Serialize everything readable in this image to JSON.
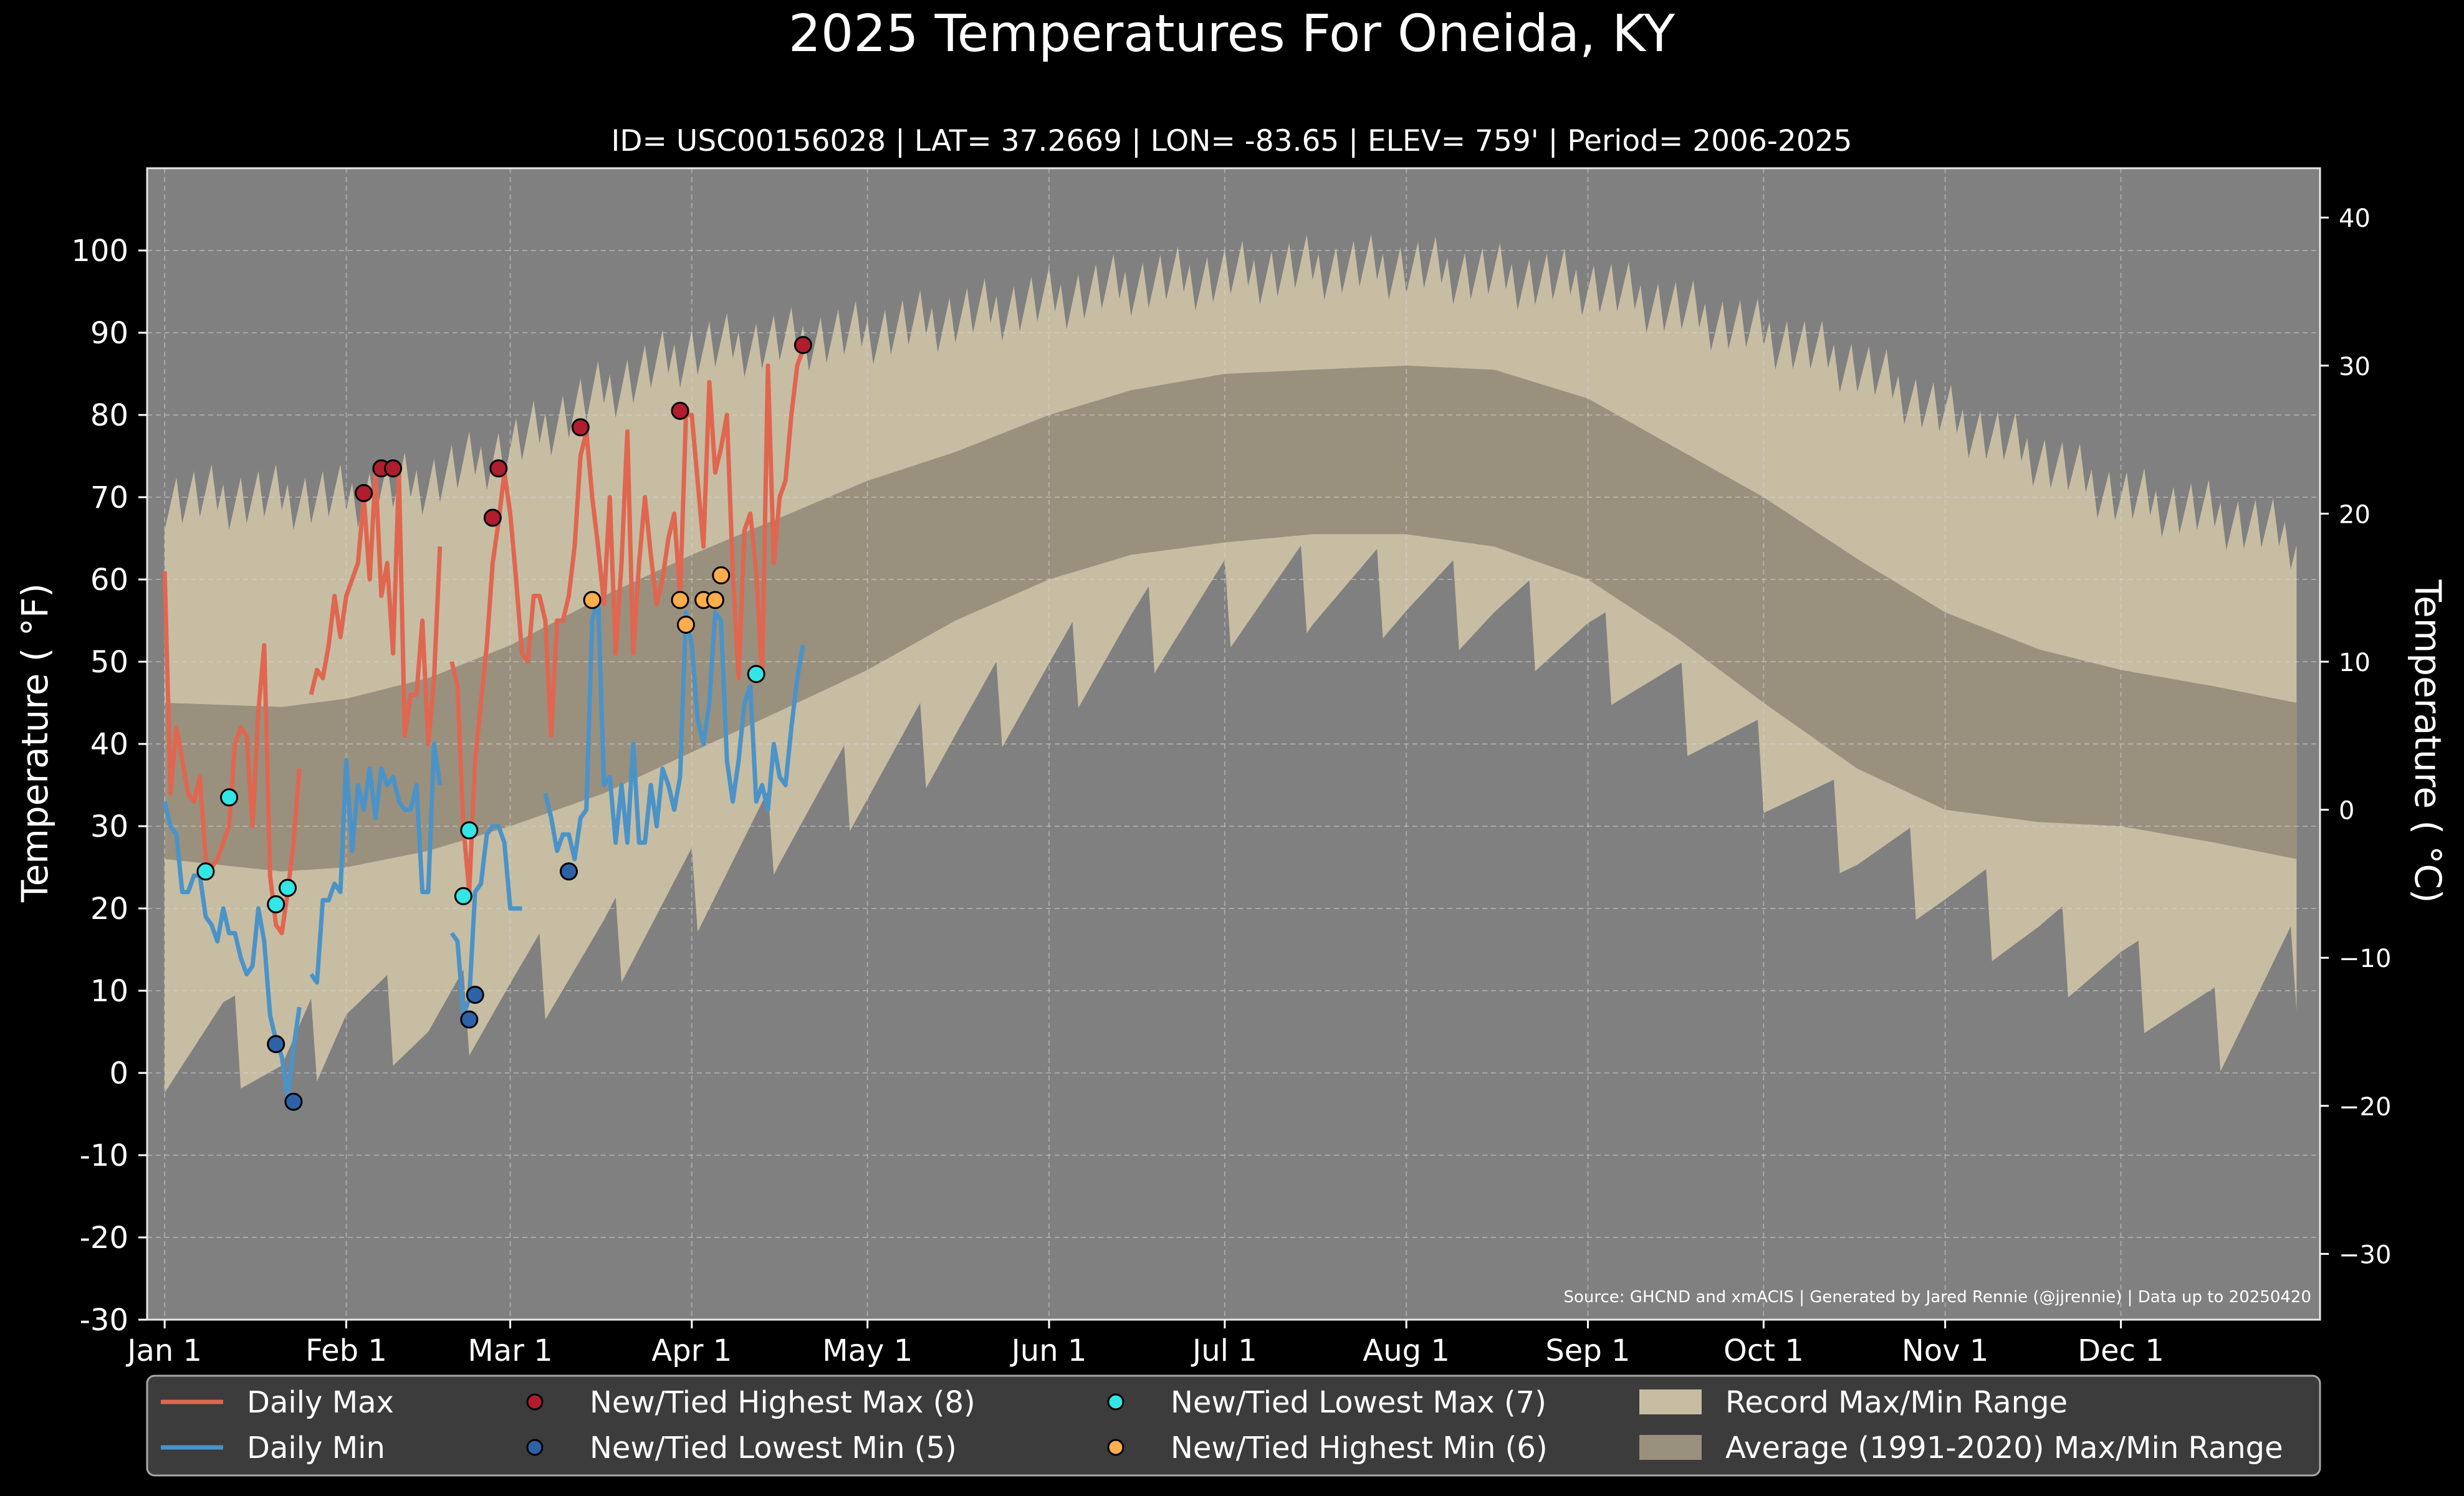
{
  "chart_data": {
    "type": "area",
    "title": "2025 Temperatures For Oneida, KY",
    "subtitle": "ID= USC00156028 | LAT= 37.2669 | LON= -83.65 | ELEV= 759' | Period= 2006-2025",
    "ylabel": "Temperature ( $^\\circ$F)",
    "ylabel_display": "Temperature ( °F)",
    "ylabel_right": "Temperature ( °C)",
    "source": "Source: GHCND and xmACIS | Generated by Jared Rennie (@jjrennie) | Data up to 20250420",
    "ylim": [
      -30,
      110
    ],
    "xlim": [
      -3,
      368
    ],
    "yticks": [
      "-30",
      "-20",
      "-10",
      "0",
      "10",
      "20",
      "30",
      "40",
      "50",
      "60",
      "70",
      "80",
      "90",
      "100"
    ],
    "yticks_right": [
      "−30",
      "−20",
      "−10",
      "0",
      "10",
      "20",
      "30",
      "40"
    ],
    "xticks": [
      {
        "label": "Jan 1",
        "day": 0
      },
      {
        "label": "Feb 1",
        "day": 31
      },
      {
        "label": "Mar 1",
        "day": 59
      },
      {
        "label": "Apr 1",
        "day": 90
      },
      {
        "label": "May 1",
        "day": 120
      },
      {
        "label": "Jun 1",
        "day": 151
      },
      {
        "label": "Jul 1",
        "day": 181
      },
      {
        "label": "Aug 1",
        "day": 212
      },
      {
        "label": "Sep 1",
        "day": 243
      },
      {
        "label": "Oct 1",
        "day": 273
      },
      {
        "label": "Nov 1",
        "day": 304
      },
      {
        "label": "Dec 1",
        "day": 334
      }
    ],
    "grid": true,
    "legend_placement": "bottom",
    "legend": [
      {
        "label": "Daily Max",
        "kind": "line",
        "color": "#e06650"
      },
      {
        "label": "Daily Min",
        "kind": "line",
        "color": "#4a93c8"
      },
      {
        "label": "New/Tied Highest Max (8)",
        "kind": "dot",
        "color": "#b01e2e"
      },
      {
        "label": "New/Tied Lowest Min (5)",
        "kind": "dot",
        "color": "#2e62a8"
      },
      {
        "label": "New/Tied Lowest Max (7)",
        "kind": "dot",
        "color": "#33e6e6"
      },
      {
        "label": "New/Tied Highest Min (6)",
        "kind": "dot",
        "color": "#ffad4d"
      },
      {
        "label": "Record Max/Min Range",
        "kind": "patch",
        "color": "#c7bda3"
      },
      {
        "label": "Average (1991-2020) Max/Min Range",
        "kind": "patch",
        "color": "#9a907e"
      }
    ],
    "colors": {
      "background": "#000000",
      "plot_bg": "#808080",
      "record_band": "#c7bda3",
      "normal_band": "#9a907e",
      "daily_max": "#e06650",
      "daily_min": "#4a93c8"
    },
    "record_max": {
      "day": [
        0,
        10,
        20,
        31,
        45,
        59,
        75,
        90,
        105,
        120,
        135,
        151,
        165,
        181,
        196,
        212,
        227,
        243,
        258,
        273,
        289,
        304,
        320,
        334,
        350,
        364
      ],
      "value": [
        70,
        70,
        70,
        70,
        72,
        76,
        83,
        88,
        89,
        90,
        92,
        94,
        96,
        97,
        98,
        98,
        97,
        96,
        93,
        90,
        86,
        80,
        75,
        70,
        68,
        65
      ]
    },
    "record_min": {
      "day": [
        0,
        10,
        20,
        31,
        45,
        59,
        75,
        90,
        105,
        120,
        135,
        151,
        165,
        181,
        196,
        212,
        227,
        243,
        258,
        273,
        289,
        304,
        320,
        334,
        350,
        364
      ],
      "value": [
        3,
        5,
        0,
        8,
        5,
        10,
        15,
        22,
        30,
        36,
        42,
        48,
        53,
        57,
        59,
        58,
        56,
        52,
        45,
        37,
        28,
        22,
        16,
        12,
        5,
        13
      ]
    },
    "normal_max": {
      "day": [
        0,
        20,
        31,
        45,
        59,
        75,
        90,
        105,
        120,
        135,
        151,
        165,
        181,
        196,
        212,
        227,
        243,
        258,
        273,
        289,
        304,
        320,
        334,
        350,
        364
      ],
      "value": [
        45,
        44.5,
        45.5,
        48,
        52,
        58,
        63,
        67.5,
        72,
        75.5,
        80,
        83,
        85,
        85.5,
        86,
        85.5,
        82,
        76,
        70,
        62.5,
        56,
        51.5,
        49,
        47,
        45
      ]
    },
    "normal_min": {
      "day": [
        0,
        20,
        31,
        45,
        59,
        75,
        90,
        105,
        120,
        135,
        151,
        165,
        181,
        196,
        212,
        227,
        243,
        258,
        273,
        289,
        304,
        320,
        334,
        350,
        364
      ],
      "value": [
        26,
        24.5,
        25,
        27,
        30,
        34,
        39,
        44,
        49,
        55,
        60,
        63,
        64.5,
        65.5,
        65.5,
        64,
        60,
        53,
        45,
        37,
        32,
        30.5,
        30,
        28,
        26
      ]
    },
    "daily_max": [
      [
        0,
        61
      ],
      [
        1,
        34
      ],
      [
        2,
        42
      ],
      [
        3,
        38
      ],
      [
        4,
        34
      ],
      [
        5,
        33
      ],
      [
        6,
        36
      ],
      [
        7,
        26
      ],
      [
        8,
        25
      ],
      [
        9,
        26
      ],
      [
        10,
        28
      ],
      [
        11,
        30
      ],
      [
        12,
        40
      ],
      [
        13,
        42
      ],
      [
        14,
        41
      ],
      [
        15,
        30
      ],
      [
        16,
        44
      ],
      [
        17,
        52
      ],
      [
        18,
        24
      ],
      [
        19,
        18
      ],
      [
        20,
        17
      ],
      [
        21,
        22
      ],
      [
        22,
        28
      ],
      [
        23,
        37
      ],
      [
        25,
        46
      ],
      [
        26,
        49
      ],
      [
        27,
        48
      ],
      [
        28,
        52
      ],
      [
        29,
        58
      ],
      [
        30,
        53
      ],
      [
        31,
        58
      ],
      [
        32,
        60
      ],
      [
        33,
        62
      ],
      [
        34,
        70
      ],
      [
        35,
        60
      ],
      [
        36,
        73
      ],
      [
        37,
        58
      ],
      [
        38,
        62
      ],
      [
        39,
        51
      ],
      [
        40,
        73
      ],
      [
        41,
        41
      ],
      [
        42,
        46
      ],
      [
        43,
        46
      ],
      [
        44,
        55
      ],
      [
        45,
        40
      ],
      [
        46,
        48
      ],
      [
        47,
        64
      ],
      [
        49,
        50
      ],
      [
        50,
        47
      ],
      [
        51,
        30
      ],
      [
        52,
        22
      ],
      [
        53,
        38
      ],
      [
        54,
        45
      ],
      [
        55,
        52
      ],
      [
        56,
        62
      ],
      [
        57,
        67
      ],
      [
        58,
        73
      ],
      [
        59,
        68
      ],
      [
        60,
        60
      ],
      [
        61,
        51
      ],
      [
        62,
        50
      ],
      [
        63,
        58
      ],
      [
        64,
        58
      ],
      [
        65,
        55
      ],
      [
        66,
        41
      ],
      [
        67,
        55
      ],
      [
        68,
        55
      ],
      [
        69,
        58
      ],
      [
        70,
        64
      ],
      [
        71,
        75
      ],
      [
        72,
        78
      ],
      [
        73,
        70
      ],
      [
        74,
        64
      ],
      [
        75,
        57
      ],
      [
        76,
        70
      ],
      [
        77,
        51
      ],
      [
        78,
        62
      ],
      [
        79,
        78
      ],
      [
        80,
        51
      ],
      [
        81,
        62
      ],
      [
        82,
        70
      ],
      [
        83,
        63
      ],
      [
        84,
        57
      ],
      [
        85,
        60
      ],
      [
        86,
        65
      ],
      [
        87,
        68
      ],
      [
        88,
        58
      ],
      [
        89,
        80
      ],
      [
        90,
        80
      ],
      [
        91,
        72
      ],
      [
        92,
        64
      ],
      [
        93,
        84
      ],
      [
        94,
        73
      ],
      [
        95,
        76
      ],
      [
        96,
        80
      ],
      [
        97,
        61
      ],
      [
        98,
        48
      ],
      [
        99,
        66
      ],
      [
        100,
        68
      ],
      [
        101,
        61
      ],
      [
        102,
        48
      ],
      [
        103,
        86
      ],
      [
        104,
        62
      ],
      [
        105,
        70
      ],
      [
        106,
        72
      ],
      [
        107,
        80
      ],
      [
        108,
        86
      ],
      [
        109,
        88
      ]
    ],
    "daily_min": [
      [
        0,
        33
      ],
      [
        1,
        30
      ],
      [
        2,
        29
      ],
      [
        3,
        22
      ],
      [
        4,
        22
      ],
      [
        5,
        24
      ],
      [
        6,
        24
      ],
      [
        7,
        19
      ],
      [
        8,
        18
      ],
      [
        9,
        16
      ],
      [
        10,
        20
      ],
      [
        11,
        17
      ],
      [
        12,
        17
      ],
      [
        13,
        14
      ],
      [
        14,
        12
      ],
      [
        15,
        13
      ],
      [
        16,
        20
      ],
      [
        17,
        16
      ],
      [
        18,
        7
      ],
      [
        19,
        4
      ],
      [
        20,
        2
      ],
      [
        21,
        -3
      ],
      [
        22,
        3
      ],
      [
        23,
        8
      ],
      [
        25,
        12
      ],
      [
        26,
        11
      ],
      [
        27,
        21
      ],
      [
        28,
        21
      ],
      [
        29,
        23
      ],
      [
        30,
        22
      ],
      [
        31,
        38
      ],
      [
        32,
        27
      ],
      [
        33,
        35
      ],
      [
        34,
        32
      ],
      [
        35,
        37
      ],
      [
        36,
        31
      ],
      [
        37,
        37
      ],
      [
        38,
        35
      ],
      [
        39,
        36
      ],
      [
        40,
        33
      ],
      [
        41,
        32
      ],
      [
        42,
        32
      ],
      [
        43,
        35
      ],
      [
        44,
        22
      ],
      [
        45,
        22
      ],
      [
        46,
        40
      ],
      [
        47,
        35
      ],
      [
        49,
        17
      ],
      [
        50,
        16
      ],
      [
        51,
        7
      ],
      [
        52,
        9
      ],
      [
        53,
        22
      ],
      [
        54,
        23
      ],
      [
        55,
        29
      ],
      [
        56,
        30
      ],
      [
        57,
        30
      ],
      [
        58,
        28
      ],
      [
        59,
        20
      ],
      [
        60,
        20
      ],
      [
        61,
        20
      ],
      [
        65,
        34
      ],
      [
        66,
        31
      ],
      [
        67,
        27
      ],
      [
        68,
        29
      ],
      [
        69,
        29
      ],
      [
        70,
        26
      ],
      [
        71,
        31
      ],
      [
        72,
        32
      ],
      [
        73,
        55
      ],
      [
        74,
        58
      ],
      [
        75,
        35
      ],
      [
        76,
        36
      ],
      [
        77,
        28
      ],
      [
        78,
        35
      ],
      [
        79,
        28
      ],
      [
        80,
        40
      ],
      [
        81,
        28
      ],
      [
        82,
        28
      ],
      [
        83,
        35
      ],
      [
        84,
        30
      ],
      [
        85,
        37
      ],
      [
        86,
        35
      ],
      [
        87,
        32
      ],
      [
        88,
        36
      ],
      [
        89,
        56
      ],
      [
        90,
        52
      ],
      [
        91,
        43
      ],
      [
        92,
        40
      ],
      [
        93,
        45
      ],
      [
        94,
        56
      ],
      [
        95,
        55
      ],
      [
        96,
        38
      ],
      [
        97,
        33
      ],
      [
        98,
        38
      ],
      [
        99,
        45
      ],
      [
        100,
        47
      ],
      [
        101,
        33
      ],
      [
        102,
        35
      ],
      [
        103,
        32
      ],
      [
        104,
        40
      ],
      [
        105,
        36
      ],
      [
        106,
        35
      ],
      [
        107,
        42
      ],
      [
        108,
        48
      ],
      [
        109,
        52
      ]
    ],
    "record_markers": [
      {
        "type": "highest_max",
        "points": [
          [
            34,
            70.5
          ],
          [
            37,
            73.5
          ],
          [
            39,
            73.5
          ],
          [
            56,
            67.5
          ],
          [
            57,
            73.5
          ],
          [
            71,
            78.5
          ],
          [
            88,
            80.5
          ],
          [
            109,
            88.5
          ]
        ]
      },
      {
        "type": "lowest_min",
        "points": [
          [
            19,
            3.5
          ],
          [
            22,
            -3.5
          ],
          [
            52,
            6.5
          ],
          [
            53,
            9.5
          ],
          [
            69,
            24.5
          ]
        ]
      },
      {
        "type": "lowest_max",
        "points": [
          [
            7,
            24.5
          ],
          [
            11,
            33.5
          ],
          [
            19,
            20.5
          ],
          [
            21,
            22.5
          ],
          [
            51,
            21.5
          ],
          [
            52,
            29.5
          ],
          [
            101,
            48.5
          ]
        ]
      },
      {
        "type": "highest_min",
        "points": [
          [
            73,
            57.5
          ],
          [
            88,
            57.5
          ],
          [
            89,
            54.5
          ],
          [
            92,
            57.5
          ],
          [
            94,
            57.5
          ],
          [
            95,
            60.5
          ]
        ]
      }
    ]
  }
}
